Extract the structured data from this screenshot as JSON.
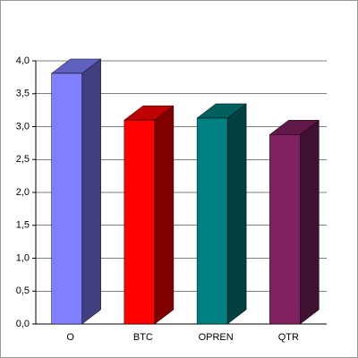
{
  "chart_data": {
    "type": "bar3d",
    "categories": [
      "O",
      "BTC",
      "OPREN",
      "QTR"
    ],
    "values": [
      3.81,
      3.1,
      3.13,
      2.88
    ],
    "colors": [
      "#8080ff",
      "#ff0000",
      "#008080",
      "#802060"
    ],
    "ylim": [
      0,
      4
    ],
    "yticks": [
      {
        "value": 0,
        "label": "0,0"
      },
      {
        "value": 0.5,
        "label": "0,5"
      },
      {
        "value": 1,
        "label": "1,0"
      },
      {
        "value": 1.5,
        "label": "1,5"
      },
      {
        "value": 2,
        "label": "2,0"
      },
      {
        "value": 2.5,
        "label": "2,5"
      },
      {
        "value": 3,
        "label": "3,0"
      },
      {
        "value": 3.5,
        "label": "3,5"
      },
      {
        "value": 4,
        "label": "4,0"
      }
    ],
    "grid": true
  }
}
